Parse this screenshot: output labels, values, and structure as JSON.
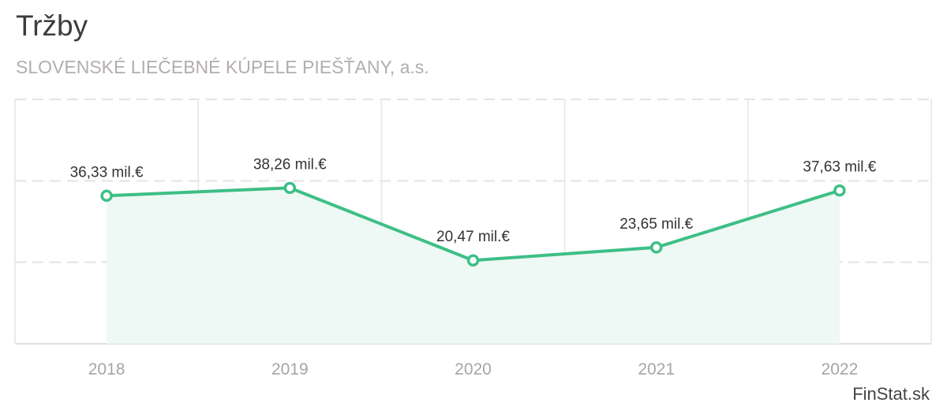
{
  "header": {
    "title": "Tržby",
    "subtitle": "SLOVENSKÉ LIEČEBNÉ KÚPELE PIEŠŤANY, a.s."
  },
  "footer": {
    "brand": "FinStat.sk"
  },
  "colors": {
    "line": "#3dbf86",
    "fill": "#eef8f4",
    "grid": "#e3e3e3",
    "axis": "#e0e0e0"
  },
  "chart_data": {
    "type": "area",
    "title": "Tržby",
    "subtitle": "SLOVENSKÉ LIEČEBNÉ KÚPELE PIEŠŤANY, a.s.",
    "xlabel": "",
    "ylabel": "",
    "categories": [
      "2018",
      "2019",
      "2020",
      "2021",
      "2022"
    ],
    "series": [
      {
        "name": "Tržby",
        "values": [
          36.33,
          38.26,
          20.47,
          23.65,
          37.63
        ],
        "labels": [
          "36,33 mil.€",
          "38,26 mil.€",
          "20,47 mil.€",
          "23,65 mil.€",
          "37,63 mil.€"
        ]
      }
    ],
    "ylim": [
      0,
      60
    ],
    "yticks": [
      20,
      40,
      60
    ],
    "grid": true,
    "legend": "none"
  }
}
